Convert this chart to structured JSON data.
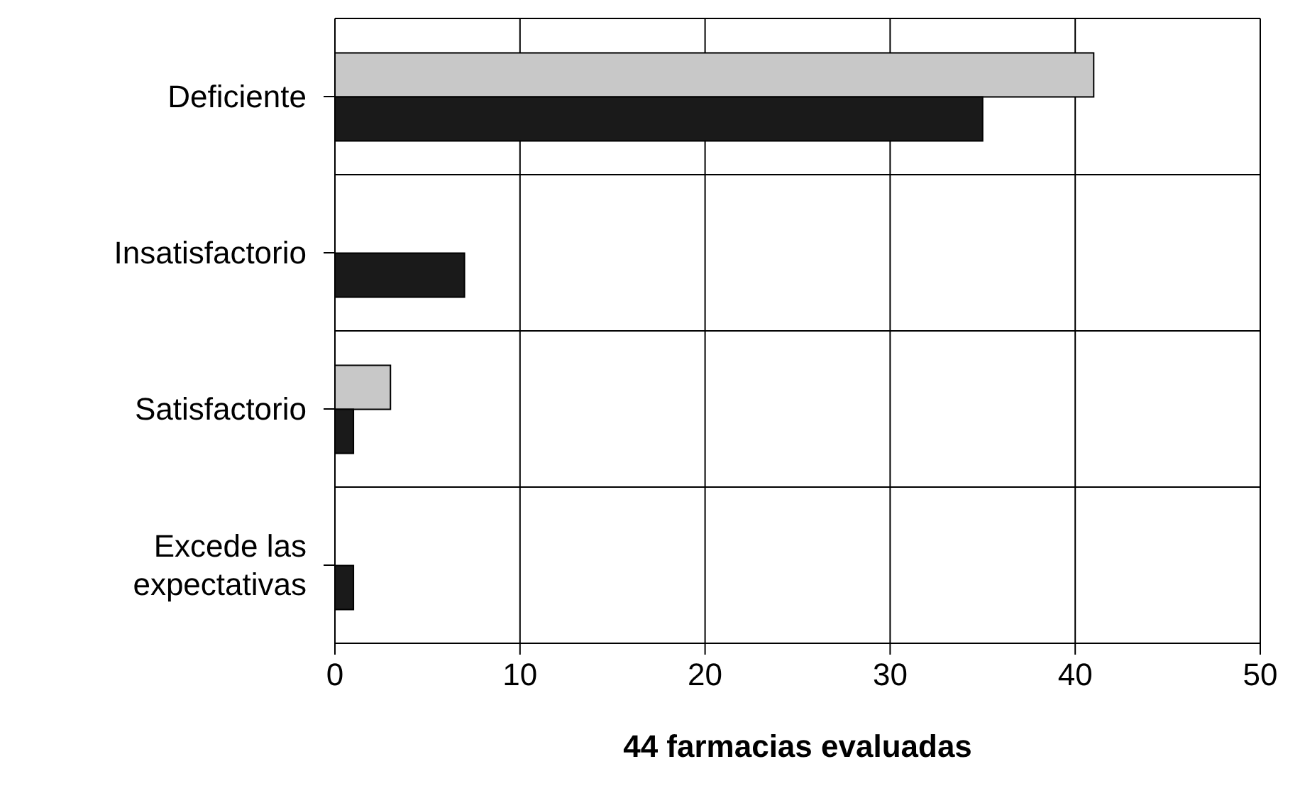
{
  "chart_data": {
    "type": "bar",
    "orientation": "horizontal",
    "xlabel": "44 farmacias evaluadas",
    "categories": [
      "Deficiente",
      "Insatisfactorio",
      "Satisfactorio",
      "Excede las expectativas"
    ],
    "series": [
      {
        "color": "#c8c8c8",
        "values": [
          41,
          0,
          3,
          0
        ]
      },
      {
        "color": "#1a1a1a",
        "values": [
          35,
          7,
          1,
          1
        ]
      }
    ],
    "xlim": [
      0,
      50
    ],
    "xticks": [
      0,
      10,
      20,
      30,
      40,
      50
    ],
    "grid": true
  }
}
